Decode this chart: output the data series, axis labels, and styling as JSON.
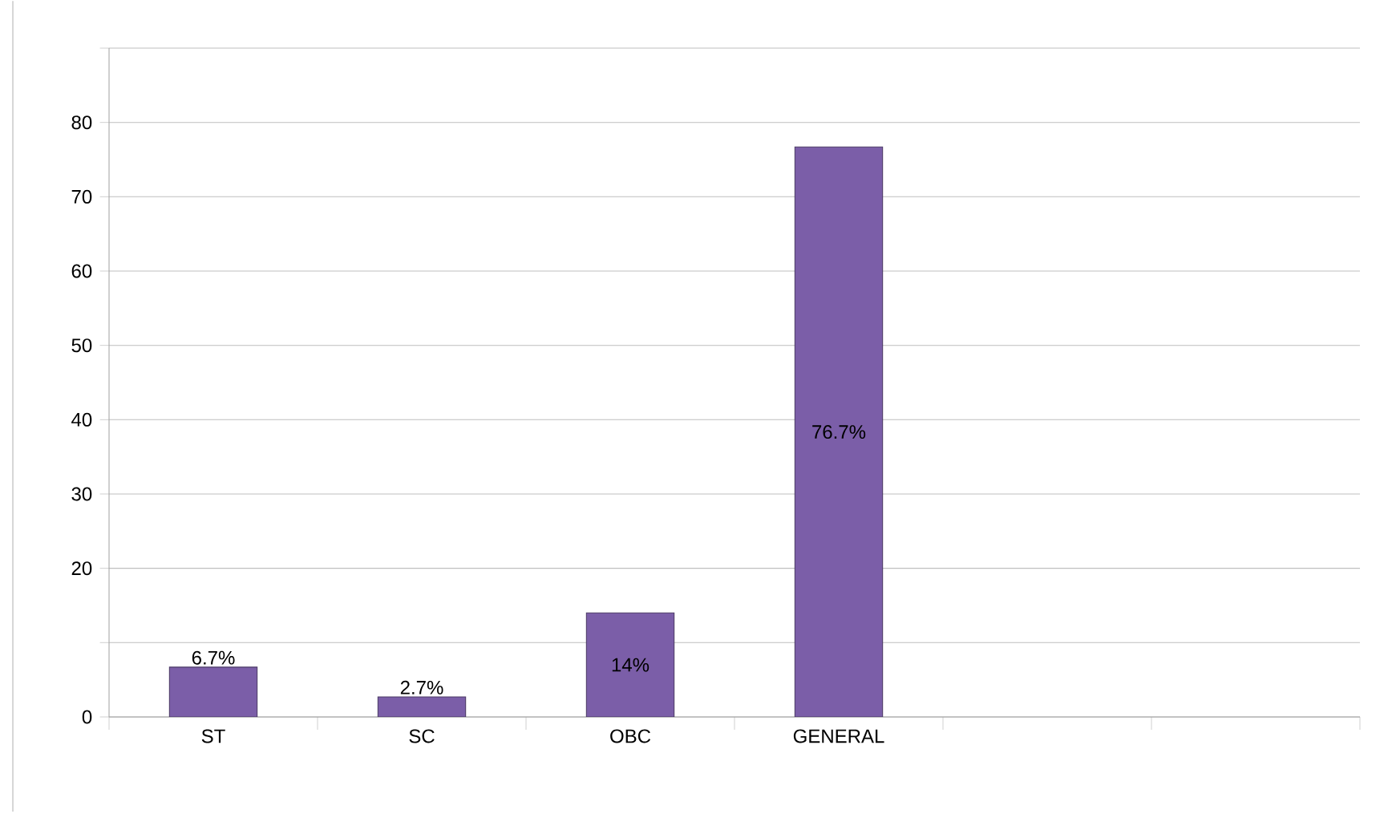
{
  "chart_data": {
    "type": "bar",
    "categories": [
      "ST",
      "SC",
      "OBC",
      "GENERAL",
      null,
      null
    ],
    "values": [
      6.7,
      2.7,
      14,
      76.7,
      null,
      null
    ],
    "value_labels": [
      "6.7%",
      "2.7%",
      "14%",
      "76.7%",
      null,
      null
    ],
    "color": "#7b5ea8",
    "ylim": [
      0,
      90
    ],
    "yticks": [
      {
        "value": 0,
        "label": "0"
      },
      {
        "value": 10,
        "label": null
      },
      20,
      30,
      40,
      50,
      60,
      70,
      80,
      {
        "value": 90,
        "label": null
      }
    ],
    "grid": "y"
  }
}
